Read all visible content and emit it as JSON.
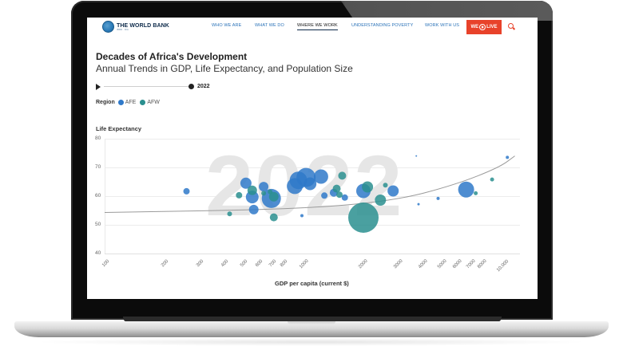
{
  "nav": {
    "logo_title": "THE WORLD BANK",
    "logo_sub": "IBRD · IDA",
    "items": [
      {
        "label": "WHO WE ARE",
        "active": false
      },
      {
        "label": "WHAT WE DO",
        "active": false
      },
      {
        "label": "WHERE WE WORK",
        "active": true
      },
      {
        "label": "UNDERSTANDING POVERTY",
        "active": false
      },
      {
        "label": "WORK WITH US",
        "active": false
      }
    ],
    "live_button": {
      "label_left": "WE",
      "label_right": "LIVE",
      "color": "#e8422a"
    },
    "search_icon": "search-icon"
  },
  "header": {
    "title": "Decades of Africa's Development",
    "subtitle": "Annual Trends in GDP, Life Expectancy, and Population Size"
  },
  "timeline": {
    "play_icon": "play-icon",
    "current_year": "2022"
  },
  "legend": {
    "label": "Region",
    "items": [
      {
        "name": "AFE",
        "color": "#2f79c9"
      },
      {
        "name": "AFW",
        "color": "#2a8f8f"
      }
    ]
  },
  "chart_data": {
    "type": "scatter",
    "title": "Decades of Africa's Development",
    "subtitle": "Annual Trends in GDP, Life Expectancy, and Population Size",
    "xlabel": "GDP per capita (current $)",
    "ylabel": "Life Expectancy",
    "x_scale": "log",
    "xlim": [
      100,
      12000
    ],
    "ylim": [
      40,
      80
    ],
    "yticks": [
      "80",
      "70",
      "60",
      "50",
      "40"
    ],
    "xticks": [
      "100",
      "200",
      "300",
      "400",
      "500",
      "600",
      "700",
      "800",
      "1000",
      "2000",
      "3000",
      "4000",
      "5000",
      "6000",
      "7000",
      "8000",
      "10,000"
    ],
    "background_label": "2022",
    "grid": true,
    "legend_position": "top-left",
    "series": [
      {
        "name": "AFE",
        "color": "#2f79c9",
        "points": [
          {
            "x": 260,
            "y": 61.7,
            "r": 4
          },
          {
            "x": 520,
            "y": 64.5,
            "r": 7
          },
          {
            "x": 560,
            "y": 59.7,
            "r": 8
          },
          {
            "x": 640,
            "y": 63.3,
            "r": 6
          },
          {
            "x": 700,
            "y": 59.2,
            "r": 12
          },
          {
            "x": 570,
            "y": 55.3,
            "r": 6
          },
          {
            "x": 920,
            "y": 63.5,
            "r": 10
          },
          {
            "x": 960,
            "y": 65.5,
            "r": 11
          },
          {
            "x": 1050,
            "y": 66.5,
            "r": 12
          },
          {
            "x": 1250,
            "y": 66.8,
            "r": 9
          },
          {
            "x": 1100,
            "y": 64.3,
            "r": 8
          },
          {
            "x": 1000,
            "y": 53.2,
            "r": 2
          },
          {
            "x": 1300,
            "y": 60.2,
            "r": 4
          },
          {
            "x": 1450,
            "y": 61.2,
            "r": 5
          },
          {
            "x": 1650,
            "y": 59.5,
            "r": 4
          },
          {
            "x": 2050,
            "y": 61.8,
            "r": 9
          },
          {
            "x": 2900,
            "y": 61.8,
            "r": 7
          },
          {
            "x": 3900,
            "y": 57.2,
            "r": 1.5
          },
          {
            "x": 4900,
            "y": 59.2,
            "r": 2
          },
          {
            "x": 6800,
            "y": 62.3,
            "r": 10
          },
          {
            "x": 3800,
            "y": 74.0,
            "r": 1
          },
          {
            "x": 11000,
            "y": 73.5,
            "r": 2
          }
        ]
      },
      {
        "name": "AFW",
        "color": "#2a8f8f",
        "points": [
          {
            "x": 430,
            "y": 53.8,
            "r": 3
          },
          {
            "x": 480,
            "y": 60.3,
            "r": 4
          },
          {
            "x": 560,
            "y": 62.0,
            "r": 6
          },
          {
            "x": 640,
            "y": 61.0,
            "r": 3
          },
          {
            "x": 690,
            "y": 61.5,
            "r": 3
          },
          {
            "x": 720,
            "y": 59.8,
            "r": 6
          },
          {
            "x": 720,
            "y": 52.6,
            "r": 5
          },
          {
            "x": 1600,
            "y": 67.1,
            "r": 5
          },
          {
            "x": 1500,
            "y": 62.6,
            "r": 5
          },
          {
            "x": 1550,
            "y": 60.5,
            "r": 4
          },
          {
            "x": 2150,
            "y": 63.2,
            "r": 7
          },
          {
            "x": 2650,
            "y": 63.8,
            "r": 3
          },
          {
            "x": 2500,
            "y": 58.6,
            "r": 7
          },
          {
            "x": 2050,
            "y": 52.5,
            "r": 19
          },
          {
            "x": 7600,
            "y": 61.0,
            "r": 2.5
          },
          {
            "x": 9200,
            "y": 65.8,
            "r": 2.5
          }
        ]
      }
    ],
    "trendline": [
      [
        100,
        54.3
      ],
      [
        1000,
        55.5
      ],
      [
        3000,
        58.5
      ],
      [
        6000,
        64
      ],
      [
        10000,
        70
      ],
      [
        12000,
        74
      ]
    ]
  }
}
